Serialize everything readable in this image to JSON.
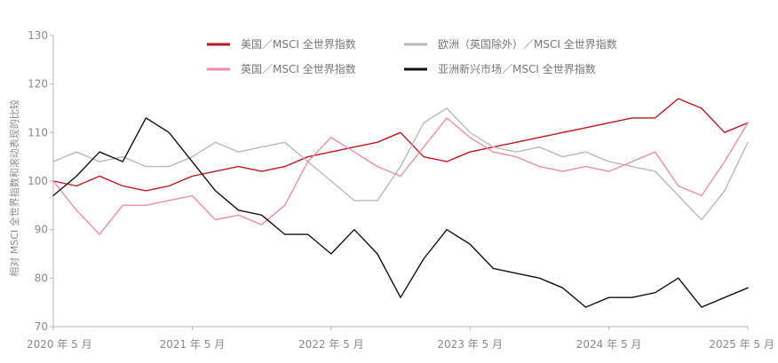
{
  "chart_data": {
    "type": "line",
    "ylabel": "相对 MSCI 全世界指数和滚动表现的比较",
    "ylim": [
      70,
      130
    ],
    "yticks": [
      70,
      80,
      90,
      100,
      110,
      120,
      130
    ],
    "xlim": [
      "2020-05",
      "2025-05"
    ],
    "xticks": [
      {
        "date": "2020-05",
        "label": "2020 年 5 月"
      },
      {
        "date": "2021-05",
        "label": "2021 年 5 月"
      },
      {
        "date": "2022-05",
        "label": "2022 年 5 月"
      },
      {
        "date": "2023-05",
        "label": "2023 年 5 月"
      },
      {
        "date": "2024-05",
        "label": "2024 年 5 月"
      },
      {
        "date": "2025-05",
        "label": "2025 年 5 月"
      }
    ],
    "grid": false,
    "legend": "top",
    "x": [
      "2020-05",
      "2020-07",
      "2020-09",
      "2020-11",
      "2021-01",
      "2021-03",
      "2021-05",
      "2021-07",
      "2021-09",
      "2021-11",
      "2022-01",
      "2022-03",
      "2022-05",
      "2022-07",
      "2022-09",
      "2022-11",
      "2023-01",
      "2023-03",
      "2023-05",
      "2023-07",
      "2023-09",
      "2023-11",
      "2024-01",
      "2024-03",
      "2024-05",
      "2024-07",
      "2024-09",
      "2024-11",
      "2025-01",
      "2025-03",
      "2025-05"
    ],
    "series": [
      {
        "name": "美国／MSCI 全世界指数",
        "color": "#c0151b",
        "values": [
          100,
          99,
          101,
          99,
          98,
          99,
          101,
          102,
          103,
          102,
          103,
          105,
          106,
          107,
          108,
          110,
          105,
          104,
          106,
          107,
          108,
          109,
          110,
          111,
          112,
          113,
          113,
          117,
          115,
          110,
          112
        ]
      },
      {
        "name": "欧洲（英国除外）／MSCI 全世界指数",
        "color": "#b9b9b9",
        "values": [
          104,
          106,
          104,
          105,
          103,
          103,
          105,
          108,
          106,
          107,
          108,
          104,
          100,
          96,
          96,
          103,
          112,
          115,
          110,
          107,
          106,
          107,
          105,
          106,
          104,
          103,
          102,
          97,
          92,
          98,
          108
        ]
      },
      {
        "name": "英国／MSCI 全世界指数",
        "color": "#ee8ca4",
        "values": [
          100,
          94,
          89,
          95,
          95,
          96,
          97,
          92,
          93,
          91,
          95,
          104,
          109,
          106,
          103,
          101,
          107,
          113,
          109,
          106,
          105,
          103,
          102,
          103,
          102,
          104,
          106,
          99,
          97,
          104,
          112
        ]
      },
      {
        "name": "亚洲新兴市场／MSCI 全世界指数",
        "color": "#111111",
        "values": [
          97,
          101,
          106,
          104,
          113,
          110,
          104,
          98,
          94,
          93,
          89,
          89,
          85,
          90,
          85,
          76,
          84,
          90,
          87,
          82,
          81,
          80,
          78,
          74,
          76,
          76,
          77,
          80,
          74,
          76,
          78
        ]
      }
    ]
  }
}
